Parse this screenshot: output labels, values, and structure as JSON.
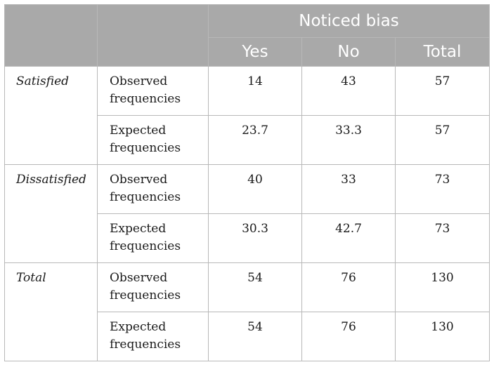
{
  "header": {
    "group_label": "Noticed bias",
    "columns": [
      "Yes",
      "No",
      "Total"
    ]
  },
  "groups": [
    {
      "label": "Satisfied",
      "rows": [
        {
          "measure": "Observed frequencies",
          "values": [
            "14",
            "43",
            "57"
          ]
        },
        {
          "measure": "Expected frequencies",
          "values": [
            "23.7",
            "33.3",
            "57"
          ]
        }
      ]
    },
    {
      "label": "Dissatisfied",
      "rows": [
        {
          "measure": "Observed frequencies",
          "values": [
            "40",
            "33",
            "73"
          ]
        },
        {
          "measure": "Expected frequencies",
          "values": [
            "30.3",
            "42.7",
            "73"
          ]
        }
      ]
    },
    {
      "label": "Total",
      "rows": [
        {
          "measure": "Observed frequencies",
          "values": [
            "54",
            "76",
            "130"
          ]
        },
        {
          "measure": "Expected frequencies",
          "values": [
            "54",
            "76",
            "130"
          ]
        }
      ]
    }
  ]
}
